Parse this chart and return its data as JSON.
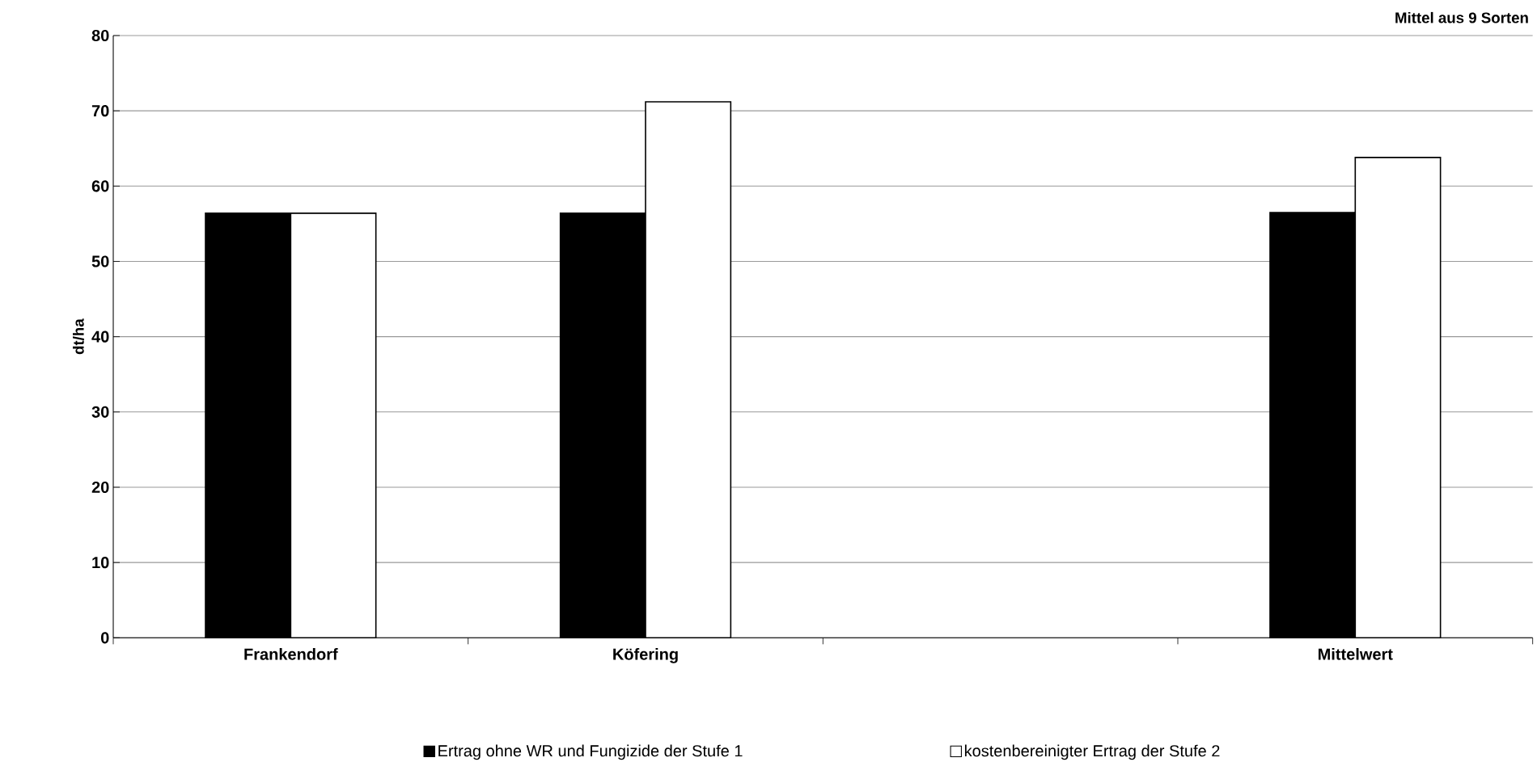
{
  "chart_data": {
    "type": "bar",
    "title": "Mittel aus 9 Sorten",
    "ylabel": "dt/ha",
    "categories": [
      "Frankendorf",
      "Köfering",
      null,
      "Mittelwert"
    ],
    "series": [
      {
        "name": "Ertrag ohne WR und Fungizide der Stufe 1",
        "color": "#000000",
        "values": [
          56.4,
          56.4,
          null,
          56.5
        ]
      },
      {
        "name": "kostenbereinigter Ertrag der Stufe 2",
        "color": "#ffffff",
        "values": [
          56.4,
          71.2,
          null,
          63.8
        ]
      }
    ],
    "ylim": [
      0,
      80
    ],
    "yticks": [
      0,
      10,
      20,
      30,
      40,
      50,
      60,
      70,
      80
    ],
    "grid": "y",
    "legend": "bottom"
  }
}
